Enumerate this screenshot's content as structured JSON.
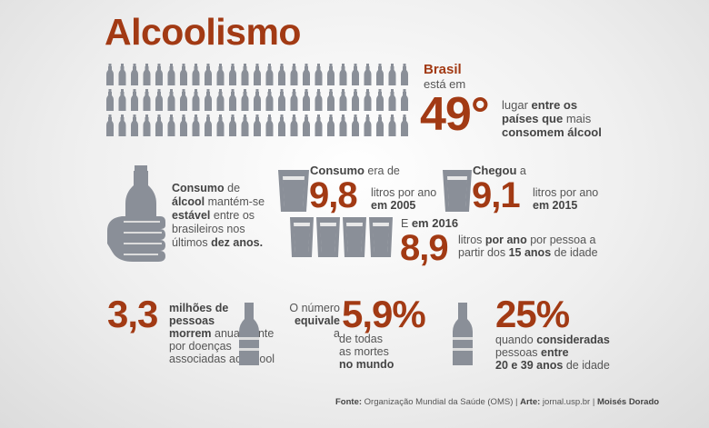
{
  "title": "Alcoolismo",
  "colors": {
    "accent": "#a23a14",
    "icon": "#8a8f98",
    "text": "#555555"
  },
  "rank": {
    "country": "Brasil",
    "line1": "está em",
    "position": "49°",
    "desc_a": "lugar ",
    "desc_b": "entre os",
    "desc_c": "países que",
    "desc_d": " mais",
    "desc_e": "consomem álcool"
  },
  "stable": {
    "a": "Consumo",
    "b": " de",
    "c": "álcool",
    "d": " mantém-se",
    "e": "estável",
    "f": " entre os",
    "g": "brasileiros nos",
    "h": "últimos ",
    "i": "dez anos."
  },
  "c2005": {
    "label_a": "Consumo",
    "label_b": " era de",
    "value": "9,8",
    "unit": "litros por ano",
    "year": "em 2005"
  },
  "c2015": {
    "label": "Chegou",
    "label_b": " a",
    "value": "9,1",
    "unit": "litros por ano",
    "year": "em 2015"
  },
  "c2016": {
    "label_a": "E ",
    "label_b": "em 2016",
    "value": "8,9",
    "unit_a": "litros ",
    "unit_b": "por ano",
    "unit_c": " por pessoa a",
    "unit_d": "partir dos ",
    "unit_e": "15 anos",
    "unit_f": " de idade"
  },
  "deaths": {
    "value": "3,3",
    "a": "milhões de",
    "b": "pessoas",
    "c": "morrem",
    "d": " anualmente",
    "e": "por doenças",
    "f": "associadas ao álcool"
  },
  "share": {
    "a": "O número",
    "b": "equivale",
    "c": " a",
    "value": "5,9%",
    "d": "de todas",
    "e": "as mortes",
    "f": "no mundo"
  },
  "young": {
    "value": "25%",
    "a": "quando ",
    "b": "consideradas",
    "c": "pessoas  ",
    "d": "entre",
    "e": "20 e 39 anos",
    "f": " de idade"
  },
  "footer": {
    "a": "Fonte:",
    "b": " Organização Mundial da Saúde (OMS) | ",
    "c": "Arte:",
    "d": " jornal.usp.br | ",
    "e": "Moisés Dorado"
  }
}
